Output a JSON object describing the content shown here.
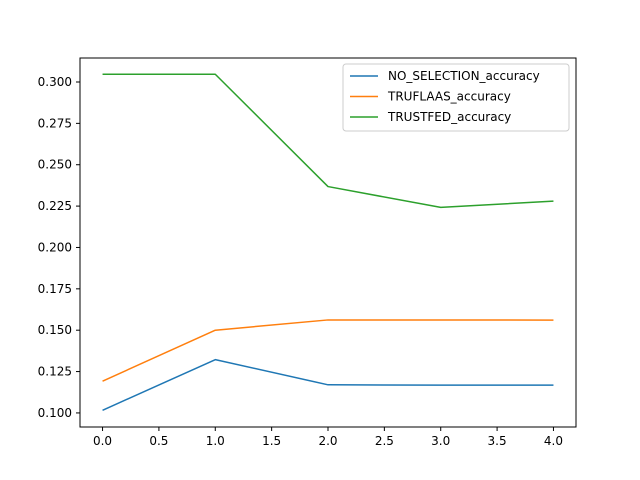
{
  "chart_data": {
    "type": "line",
    "title": "",
    "xlabel": "",
    "ylabel": "",
    "x": [
      0,
      1,
      2,
      3,
      4
    ],
    "xlim": [
      -0.2,
      4.2
    ],
    "ylim": [
      0.0915,
      0.3145
    ],
    "xticks": [
      0.0,
      0.5,
      1.0,
      1.5,
      2.0,
      2.5,
      3.0,
      3.5,
      4.0
    ],
    "xtick_labels": [
      "0.0",
      "0.5",
      "1.0",
      "1.5",
      "2.0",
      "2.5",
      "3.0",
      "3.5",
      "4.0"
    ],
    "yticks": [
      0.1,
      0.125,
      0.15,
      0.175,
      0.2,
      0.225,
      0.25,
      0.275,
      0.3
    ],
    "ytick_labels": [
      "0.100",
      "0.125",
      "0.150",
      "0.175",
      "0.200",
      "0.225",
      "0.250",
      "0.275",
      "0.300"
    ],
    "grid": false,
    "legend_position": "top-right",
    "series": [
      {
        "name": "NO_SELECTION_accuracy",
        "color": "#1f77b4",
        "values": [
          0.1016,
          0.1322,
          0.117,
          0.1168,
          0.1168
        ]
      },
      {
        "name": "TRUFLAAS_accuracy",
        "color": "#ff7f0e",
        "values": [
          0.1192,
          0.15,
          0.1562,
          0.1562,
          0.1561
        ]
      },
      {
        "name": "TRUSTFED_accuracy",
        "color": "#2ca02c",
        "values": [
          0.3047,
          0.3047,
          0.2368,
          0.2242,
          0.228
        ]
      }
    ]
  }
}
